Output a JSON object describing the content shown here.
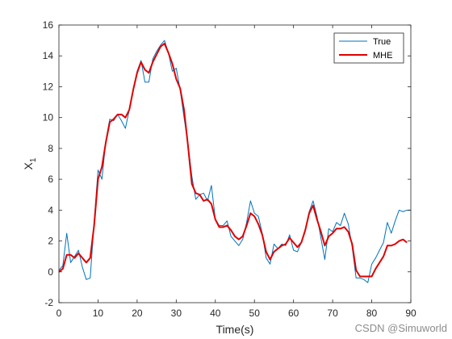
{
  "chart_data": {
    "type": "line",
    "xlabel": "Time(s)",
    "ylabel_main": "X",
    "ylabel_sub": "1",
    "xlim": [
      0,
      90
    ],
    "ylim": [
      -2,
      16
    ],
    "xticks": [
      0,
      10,
      20,
      30,
      40,
      50,
      60,
      70,
      80,
      90
    ],
    "yticks": [
      -2,
      0,
      2,
      4,
      6,
      8,
      10,
      12,
      14,
      16
    ],
    "grid": false,
    "legend_position": "top-right",
    "series": [
      {
        "name": "True",
        "color": "#0072BD",
        "x": [
          0,
          1,
          2,
          3,
          4,
          5,
          6,
          7,
          8,
          9,
          10,
          11,
          12,
          13,
          14,
          15,
          16,
          17,
          18,
          19,
          20,
          21,
          22,
          23,
          24,
          25,
          26,
          27,
          28,
          29,
          30,
          31,
          32,
          33,
          34,
          35,
          36,
          37,
          38,
          39,
          40,
          41,
          42,
          43,
          44,
          45,
          46,
          47,
          48,
          49,
          50,
          51,
          52,
          53,
          54,
          55,
          56,
          57,
          58,
          59,
          60,
          61,
          62,
          63,
          64,
          65,
          66,
          67,
          68,
          69,
          70,
          71,
          72,
          73,
          74,
          75,
          76,
          77,
          78,
          79,
          80,
          81,
          82,
          83,
          84,
          85,
          86,
          87,
          88,
          89,
          90
        ],
        "y": [
          0.1,
          0.4,
          2.5,
          0.6,
          1.0,
          1.4,
          0.3,
          -0.5,
          -0.4,
          3.2,
          6.6,
          6.0,
          8.5,
          9.9,
          9.8,
          10.2,
          9.8,
          9.3,
          10.5,
          11.8,
          13.0,
          13.7,
          12.3,
          12.3,
          13.8,
          14.3,
          14.7,
          15.0,
          14.2,
          13.0,
          13.2,
          11.8,
          10.0,
          8.3,
          6.2,
          4.7,
          5.0,
          5.1,
          4.6,
          5.6,
          3.4,
          3.0,
          3.0,
          3.3,
          2.3,
          2.0,
          1.7,
          2.1,
          3.2,
          4.6,
          3.8,
          3.6,
          2.5,
          0.9,
          0.5,
          1.8,
          1.5,
          1.8,
          1.7,
          2.4,
          1.4,
          1.3,
          1.9,
          2.7,
          3.9,
          4.6,
          3.6,
          2.2,
          0.8,
          2.8,
          2.6,
          3.2,
          3.0,
          3.8,
          3.1,
          1.6,
          -0.4,
          -0.4,
          -0.5,
          -0.7,
          0.5,
          0.9,
          1.4,
          1.9,
          3.2,
          2.5,
          3.3,
          4.0,
          3.9,
          4.0,
          4.0
        ]
      },
      {
        "name": "MHE",
        "color": "#E00000",
        "x": [
          0,
          1,
          2,
          3,
          4,
          5,
          6,
          7,
          8,
          9,
          10,
          11,
          12,
          13,
          14,
          15,
          16,
          17,
          18,
          19,
          20,
          21,
          22,
          23,
          24,
          25,
          26,
          27,
          28,
          29,
          30,
          31,
          32,
          33,
          34,
          35,
          36,
          37,
          38,
          39,
          40,
          41,
          42,
          43,
          44,
          45,
          46,
          47,
          48,
          49,
          50,
          51,
          52,
          53,
          54,
          55,
          56,
          57,
          58,
          59,
          60,
          61,
          62,
          63,
          64,
          65,
          66,
          67,
          68,
          69,
          70,
          71,
          72,
          73,
          74,
          75,
          76,
          77,
          78,
          79,
          80,
          81,
          82,
          83,
          84,
          85,
          86,
          87,
          88,
          89
        ],
        "y": [
          0.0,
          0.2,
          1.1,
          1.1,
          0.9,
          1.2,
          0.9,
          0.6,
          0.9,
          3.0,
          6.0,
          6.8,
          8.4,
          9.7,
          9.9,
          10.2,
          10.2,
          10.0,
          10.5,
          11.8,
          12.9,
          13.6,
          13.1,
          12.9,
          13.6,
          14.1,
          14.6,
          14.8,
          14.2,
          13.5,
          12.5,
          11.9,
          10.5,
          8.2,
          5.7,
          5.1,
          5.0,
          4.6,
          4.7,
          4.4,
          3.4,
          2.9,
          2.9,
          3.0,
          2.7,
          2.3,
          2.1,
          2.3,
          3.0,
          3.8,
          3.6,
          3.1,
          2.4,
          1.3,
          0.8,
          1.3,
          1.5,
          1.7,
          1.8,
          2.2,
          1.9,
          1.6,
          1.9,
          2.7,
          3.8,
          4.3,
          3.4,
          2.6,
          1.7,
          2.3,
          2.5,
          2.8,
          2.8,
          2.9,
          2.6,
          1.8,
          0.1,
          -0.3,
          -0.3,
          -0.3,
          -0.3,
          0.2,
          0.6,
          1.0,
          1.7,
          1.7,
          1.8,
          2.0,
          2.1,
          1.9
        ]
      }
    ]
  },
  "watermark": "CSDN @Simuworld"
}
